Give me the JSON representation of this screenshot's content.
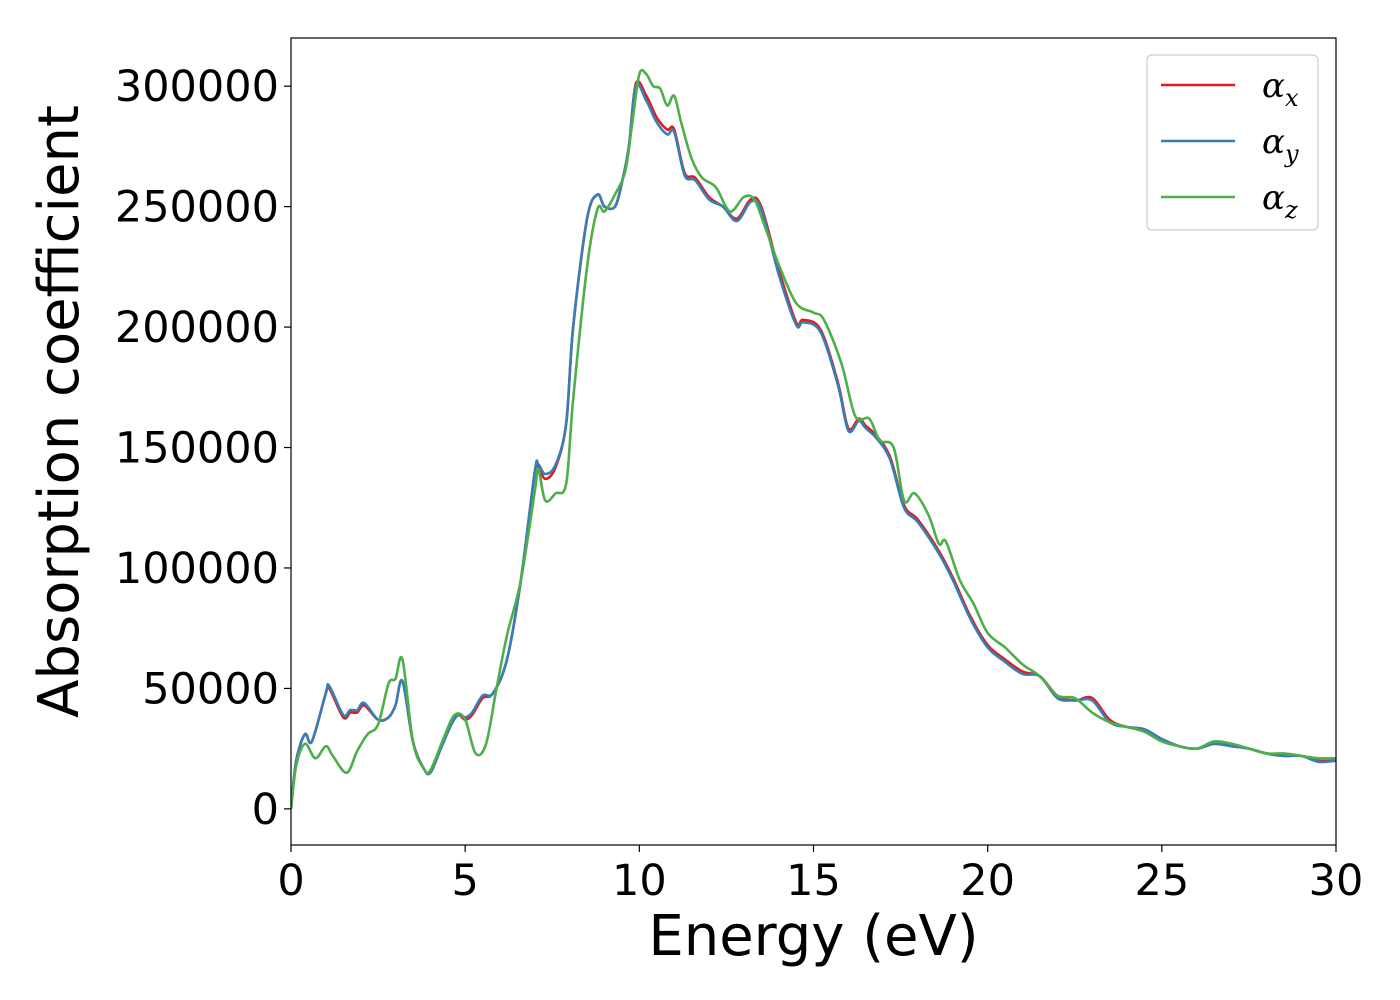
{
  "chart_data": {
    "type": "line",
    "title": "",
    "xlabel": "Energy (eV)",
    "ylabel": "Absorption coefficient",
    "xlim": [
      0,
      30
    ],
    "ylim": [
      -15000,
      320000
    ],
    "xticks": [
      0,
      5,
      10,
      15,
      20,
      25,
      30
    ],
    "xtick_labels": [
      "0",
      "5",
      "10",
      "15",
      "20",
      "25",
      "30"
    ],
    "yticks": [
      0,
      50000,
      100000,
      150000,
      200000,
      250000,
      300000
    ],
    "ytick_labels": [
      "0",
      "50000",
      "100000",
      "150000",
      "200000",
      "250000",
      "300000"
    ],
    "grid": false,
    "legend_position": "top-right",
    "series": [
      {
        "name": "αx",
        "symbol": "α",
        "subscript": "x",
        "color": "#e41a1c",
        "x": [
          0,
          0.15,
          0.4,
          0.6,
          1.0,
          1.1,
          1.5,
          1.7,
          1.9,
          2.1,
          2.5,
          2.8,
          3.0,
          3.2,
          3.5,
          3.8,
          4.0,
          4.3,
          4.6,
          4.8,
          5.0,
          5.2,
          5.5,
          5.8,
          6.2,
          6.6,
          7.0,
          7.1,
          7.3,
          7.6,
          7.9,
          8.1,
          8.5,
          8.8,
          9.0,
          9.3,
          9.5,
          9.7,
          9.9,
          10.2,
          10.5,
          10.8,
          11.0,
          11.3,
          11.6,
          12.0,
          12.4,
          12.8,
          13.2,
          13.5,
          14.0,
          14.5,
          14.7,
          15.2,
          15.7,
          16.0,
          16.3,
          16.5,
          16.8,
          17.2,
          17.6,
          18.0,
          18.6,
          19.0,
          19.5,
          20.0,
          20.5,
          21.0,
          21.5,
          22.0,
          22.5,
          23.0,
          23.5,
          24.0,
          24.5,
          25.0,
          25.5,
          26.0,
          26.5,
          27.0,
          27.5,
          28.0,
          28.5,
          29.0,
          29.5,
          30.0
        ],
        "values": [
          0,
          20000,
          31000,
          28000,
          48000,
          50000,
          38000,
          40000,
          40000,
          43000,
          37000,
          38000,
          43000,
          53000,
          28000,
          17000,
          15000,
          25000,
          35000,
          39000,
          37000,
          39000,
          46000,
          48000,
          62000,
          95000,
          140000,
          142000,
          137000,
          142000,
          160000,
          200000,
          245000,
          255000,
          250000,
          250000,
          260000,
          275000,
          301000,
          296000,
          287000,
          282000,
          282000,
          264000,
          262000,
          254000,
          250000,
          245000,
          253000,
          250000,
          224000,
          202000,
          203000,
          199000,
          177000,
          158000,
          162000,
          159000,
          155000,
          146000,
          126000,
          120000,
          107000,
          96000,
          80000,
          68000,
          62000,
          57000,
          55000,
          47000,
          45000,
          46000,
          37000,
          34000,
          33000,
          29000,
          26000,
          25000,
          27000,
          26000,
          25000,
          23000,
          22000,
          22000,
          20000,
          20000
        ]
      },
      {
        "name": "αy",
        "symbol": "α",
        "subscript": "y",
        "color": "#377eb8",
        "x": [
          0,
          0.15,
          0.4,
          0.6,
          1.0,
          1.1,
          1.5,
          1.7,
          1.9,
          2.1,
          2.5,
          2.8,
          3.0,
          3.2,
          3.5,
          3.8,
          4.0,
          4.3,
          4.6,
          4.8,
          5.0,
          5.2,
          5.5,
          5.8,
          6.2,
          6.6,
          7.0,
          7.1,
          7.3,
          7.6,
          7.9,
          8.1,
          8.5,
          8.8,
          9.0,
          9.3,
          9.5,
          9.7,
          9.9,
          10.2,
          10.5,
          10.8,
          11.0,
          11.3,
          11.6,
          12.0,
          12.4,
          12.8,
          13.2,
          13.5,
          14.0,
          14.5,
          14.7,
          15.2,
          15.7,
          16.0,
          16.3,
          16.5,
          16.8,
          17.2,
          17.6,
          18.0,
          18.6,
          19.0,
          19.5,
          20.0,
          20.5,
          21.0,
          21.5,
          22.0,
          22.5,
          23.0,
          23.5,
          24.0,
          24.5,
          25.0,
          25.5,
          26.0,
          26.5,
          27.0,
          27.5,
          28.0,
          28.5,
          29.0,
          29.5,
          30.0
        ],
        "values": [
          0,
          20000,
          31000,
          28000,
          48000,
          51000,
          39000,
          41000,
          41000,
          44000,
          37000,
          38000,
          43000,
          53000,
          28000,
          17000,
          15000,
          25000,
          35000,
          39000,
          38000,
          40000,
          47000,
          48000,
          62000,
          95000,
          140000,
          143000,
          139000,
          143000,
          160000,
          200000,
          245000,
          255000,
          250000,
          250000,
          260000,
          275000,
          300000,
          294000,
          285000,
          280000,
          281000,
          263000,
          261000,
          253000,
          250000,
          244000,
          252000,
          249000,
          222000,
          201000,
          202000,
          198000,
          176000,
          157000,
          161000,
          158000,
          154000,
          145000,
          125000,
          119000,
          106000,
          95000,
          79000,
          67000,
          61000,
          56000,
          55000,
          46000,
          45000,
          45000,
          36000,
          34000,
          33000,
          29000,
          26000,
          25000,
          27000,
          26000,
          25000,
          23000,
          22000,
          22000,
          19500,
          20000
        ]
      },
      {
        "name": "αz",
        "symbol": "α",
        "subscript": "z",
        "color": "#4daf4a",
        "x": [
          0,
          0.15,
          0.4,
          0.7,
          1.0,
          1.2,
          1.6,
          1.9,
          2.2,
          2.5,
          2.8,
          3.0,
          3.2,
          3.5,
          3.8,
          4.0,
          4.4,
          4.7,
          5.0,
          5.3,
          5.6,
          5.9,
          6.2,
          6.6,
          7.0,
          7.1,
          7.3,
          7.6,
          7.9,
          8.1,
          8.5,
          8.8,
          9.0,
          9.3,
          9.6,
          9.8,
          10.0,
          10.2,
          10.4,
          10.6,
          10.8,
          11.0,
          11.2,
          11.5,
          11.8,
          12.2,
          12.6,
          13.0,
          13.3,
          13.6,
          14.0,
          14.5,
          15.0,
          15.3,
          15.8,
          16.2,
          16.6,
          16.9,
          17.3,
          17.6,
          17.9,
          18.3,
          18.6,
          18.8,
          19.2,
          19.6,
          20.0,
          20.5,
          21.0,
          21.5,
          22.0,
          22.5,
          23.0,
          23.5,
          24.0,
          24.5,
          25.0,
          25.5,
          26.0,
          26.5,
          27.0,
          27.5,
          28.0,
          28.5,
          29.0,
          29.5,
          30.0
        ],
        "values": [
          0,
          18000,
          27000,
          21000,
          26000,
          22000,
          15000,
          24000,
          31000,
          35000,
          52000,
          54000,
          62000,
          28000,
          17000,
          16000,
          30000,
          39000,
          37000,
          23000,
          27000,
          50000,
          72000,
          95000,
          132000,
          141000,
          128000,
          131000,
          135000,
          170000,
          225000,
          249000,
          248000,
          255000,
          265000,
          285000,
          305000,
          305000,
          300000,
          299000,
          292000,
          296000,
          285000,
          270000,
          262000,
          258000,
          248000,
          254000,
          253000,
          242000,
          226000,
          210000,
          206000,
          203000,
          185000,
          163000,
          162000,
          153000,
          150000,
          128000,
          131000,
          122000,
          110000,
          111000,
          95000,
          85000,
          73000,
          67000,
          60000,
          55000,
          47000,
          46000,
          40000,
          36000,
          34000,
          32000,
          28000,
          26000,
          25000,
          28000,
          27000,
          25000,
          23000,
          23000,
          22000,
          21000,
          21000
        ]
      }
    ]
  }
}
